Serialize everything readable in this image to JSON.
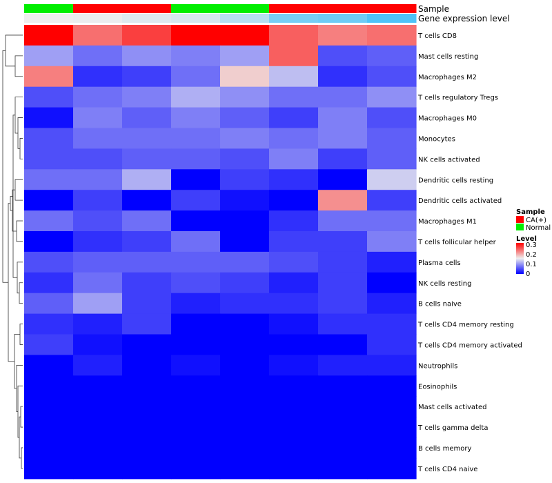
{
  "chart_data": {
    "type": "heatmap",
    "annotation_labels": {
      "sample": "Sample",
      "expression": "Gene expression level"
    },
    "sample_annotation": [
      "Normal",
      "CA(+)",
      "CA(+)",
      "Normal",
      "Normal",
      "CA(+)",
      "CA(+)",
      "CA(+)"
    ],
    "expression_annotation": [
      0.0,
      0.02,
      0.1,
      0.15,
      0.35,
      0.75,
      0.8,
      1.0
    ],
    "rows": [
      "T cells CD8",
      "Mast cells resting",
      "Macrophages M2",
      "T cells regulatory  Tregs",
      "Macrophages M0",
      "Monocytes",
      "NK cells activated",
      "Dendritic cells resting",
      "Dendritic cells activated",
      "Macrophages M1",
      "T cells follicular helper",
      "Plasma cells",
      "NK cells resting",
      "B cells naive",
      "T cells CD4 memory resting",
      "T cells CD4 memory activated",
      "Neutrophils",
      "Eosinophils",
      "Mast cells activated",
      "T cells gamma delta",
      "B cells memory",
      "T cells CD4 naive"
    ],
    "values": [
      [
        0.3,
        0.23,
        0.26,
        0.3,
        0.3,
        0.24,
        0.22,
        0.23
      ],
      [
        0.1,
        0.07,
        0.09,
        0.08,
        0.1,
        0.24,
        0.05,
        0.06
      ],
      [
        0.22,
        0.03,
        0.04,
        0.07,
        0.17,
        0.12,
        0.03,
        0.05
      ],
      [
        0.05,
        0.07,
        0.08,
        0.11,
        0.09,
        0.07,
        0.07,
        0.09
      ],
      [
        0.01,
        0.08,
        0.06,
        0.08,
        0.06,
        0.04,
        0.08,
        0.05
      ],
      [
        0.05,
        0.07,
        0.07,
        0.07,
        0.08,
        0.07,
        0.08,
        0.06
      ],
      [
        0.05,
        0.05,
        0.06,
        0.06,
        0.05,
        0.08,
        0.04,
        0.06
      ],
      [
        0.07,
        0.07,
        0.11,
        0.0,
        0.04,
        0.03,
        0.0,
        0.13
      ],
      [
        0.0,
        0.04,
        0.0,
        0.04,
        0.01,
        0.0,
        0.21,
        0.04
      ],
      [
        0.07,
        0.05,
        0.07,
        0.0,
        0.0,
        0.03,
        0.07,
        0.07
      ],
      [
        0.0,
        0.03,
        0.04,
        0.07,
        0.0,
        0.04,
        0.04,
        0.08
      ],
      [
        0.05,
        0.06,
        0.06,
        0.06,
        0.06,
        0.05,
        0.04,
        0.02
      ],
      [
        0.03,
        0.07,
        0.04,
        0.05,
        0.04,
        0.02,
        0.04,
        0.0
      ],
      [
        0.06,
        0.1,
        0.04,
        0.02,
        0.03,
        0.03,
        0.04,
        0.02
      ],
      [
        0.03,
        0.02,
        0.04,
        0.0,
        0.0,
        0.01,
        0.03,
        0.03
      ],
      [
        0.04,
        0.01,
        0.0,
        0.0,
        0.0,
        0.0,
        0.0,
        0.03
      ],
      [
        0.0,
        0.02,
        0.0,
        0.01,
        0.0,
        0.01,
        0.02,
        0.02
      ],
      [
        0.0,
        0.0,
        0.0,
        0.0,
        0.0,
        0.0,
        0.0,
        0.0
      ],
      [
        0.0,
        0.0,
        0.0,
        0.0,
        0.0,
        0.0,
        0.0,
        0.0
      ],
      [
        0.0,
        0.0,
        0.0,
        0.0,
        0.0,
        0.0,
        0.0,
        0.0
      ],
      [
        0.0,
        0.0,
        0.0,
        0.0,
        0.0,
        0.0,
        0.0,
        0.0
      ],
      [
        0.0,
        0.0,
        0.0,
        0.0,
        0.0,
        0.0,
        0.0,
        0.0
      ]
    ],
    "color_scale": {
      "min": 0,
      "max": 0.3,
      "low": "#0000ff",
      "mid": "#eeeeee",
      "high": "#ff0000",
      "mid_value": 0.15
    },
    "expression_scale_colors": [
      "#eeeeee",
      "#4fc3f7"
    ],
    "legend": {
      "sample_title": "Sample",
      "sample_entries": [
        {
          "label": "CA(+)",
          "color": "#ff0000"
        },
        {
          "label": "Normal",
          "color": "#00ee00"
        }
      ],
      "level_title": "Level",
      "level_ticks": [
        "0.3",
        "0.2",
        "0.1",
        "0"
      ],
      "position": "right"
    },
    "dendrogram": "rows"
  }
}
